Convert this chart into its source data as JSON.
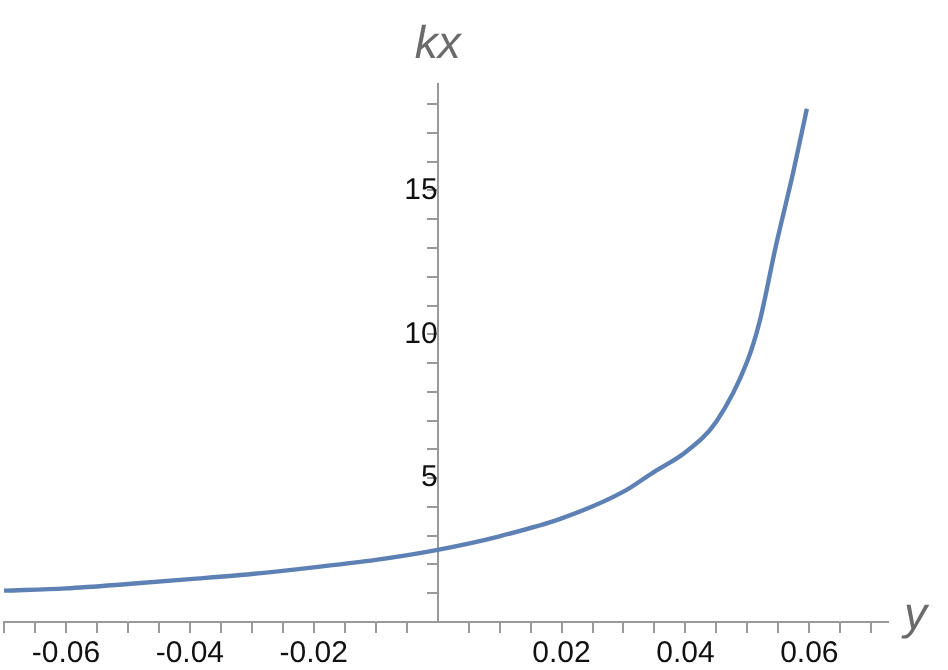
{
  "chart_data": {
    "type": "line",
    "xlabel": "y",
    "ylabel": "kx",
    "series": [
      {
        "color": "#5e81b5",
        "x": [
          -0.07,
          -0.06,
          -0.05,
          -0.04,
          -0.03,
          -0.02,
          -0.01,
          0,
          0.01,
          0.02,
          0.03,
          0.035,
          0.04,
          0.045,
          0.05,
          0.052,
          0.0546,
          0.0574,
          0.0596
        ],
        "values": [
          1.09,
          1.17,
          1.32,
          1.49,
          1.67,
          1.9,
          2.16,
          2.51,
          2.98,
          3.6,
          4.53,
          5.23,
          5.9,
          6.97,
          9.07,
          10.46,
          13.07,
          15.63,
          17.84
        ]
      }
    ],
    "xlim": [
      -0.07,
      0.0727
    ],
    "ylim": [
      0,
      18.7
    ],
    "xticks": [
      {
        "value": -0.07,
        "label": null
      },
      {
        "value": -0.065,
        "label": null
      },
      {
        "value": -0.06,
        "label": "-0.06"
      },
      {
        "value": -0.055,
        "label": null
      },
      {
        "value": -0.05,
        "label": null
      },
      {
        "value": -0.045,
        "label": null
      },
      {
        "value": -0.04,
        "label": "-0.04"
      },
      {
        "value": -0.035,
        "label": null
      },
      {
        "value": -0.03,
        "label": null
      },
      {
        "value": -0.025,
        "label": null
      },
      {
        "value": -0.02,
        "label": "-0.02"
      },
      {
        "value": -0.015,
        "label": null
      },
      {
        "value": -0.01,
        "label": null
      },
      {
        "value": -0.005,
        "label": null
      },
      {
        "value": 0.005,
        "label": null
      },
      {
        "value": 0.01,
        "label": null
      },
      {
        "value": 0.015,
        "label": null
      },
      {
        "value": 0.02,
        "label": "0.02"
      },
      {
        "value": 0.025,
        "label": null
      },
      {
        "value": 0.03,
        "label": null
      },
      {
        "value": 0.035,
        "label": null
      },
      {
        "value": 0.04,
        "label": "0.04"
      },
      {
        "value": 0.045,
        "label": null
      },
      {
        "value": 0.05,
        "label": null
      },
      {
        "value": 0.055,
        "label": null
      },
      {
        "value": 0.06,
        "label": "0.06"
      },
      {
        "value": 0.065,
        "label": null
      },
      {
        "value": 0.07,
        "label": null
      }
    ],
    "yticks": [
      {
        "value": 1,
        "label": null
      },
      {
        "value": 2,
        "label": null
      },
      {
        "value": 3,
        "label": null
      },
      {
        "value": 4,
        "label": null
      },
      5,
      {
        "value": 6,
        "label": null
      },
      {
        "value": 7,
        "label": null
      },
      {
        "value": 8,
        "label": null
      },
      {
        "value": 9,
        "label": null
      },
      10,
      {
        "value": 11,
        "label": null
      },
      {
        "value": 12,
        "label": null
      },
      {
        "value": 13,
        "label": null
      },
      {
        "value": 14,
        "label": null
      },
      15,
      {
        "value": 16,
        "label": null
      },
      {
        "value": 17,
        "label": null
      },
      {
        "value": 18,
        "label": null
      }
    ],
    "marker": "none",
    "line_style": "solid",
    "grid": false,
    "legend": false
  }
}
